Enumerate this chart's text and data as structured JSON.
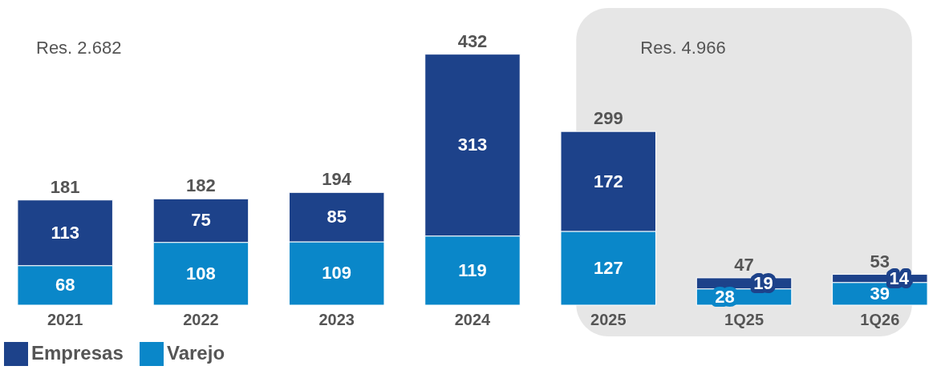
{
  "chart_data": {
    "type": "bar",
    "stacked": true,
    "data_labels": true,
    "legend": "bottom",
    "categories": [
      "2021",
      "2022",
      "2023",
      "2024",
      "2025",
      "1Q25",
      "1Q26"
    ],
    "series": [
      {
        "name": "Varejo",
        "color": "#0a87c9",
        "values": [
          68,
          108,
          109,
          119,
          127,
          28,
          39
        ]
      },
      {
        "name": "Empresas",
        "color": "#1d428a",
        "values": [
          113,
          75,
          85,
          313,
          172,
          19,
          14
        ]
      }
    ],
    "totals": [
      "181",
      "182",
      "194",
      "432",
      "299",
      "47",
      "53"
    ],
    "annotations": [
      "Res. 2.682"
    ],
    "bands": [
      {
        "axis": "x",
        "from": "2025",
        "to": "1Q26",
        "label": "Res. 4.966",
        "color": "#e6e6e6"
      }
    ]
  }
}
